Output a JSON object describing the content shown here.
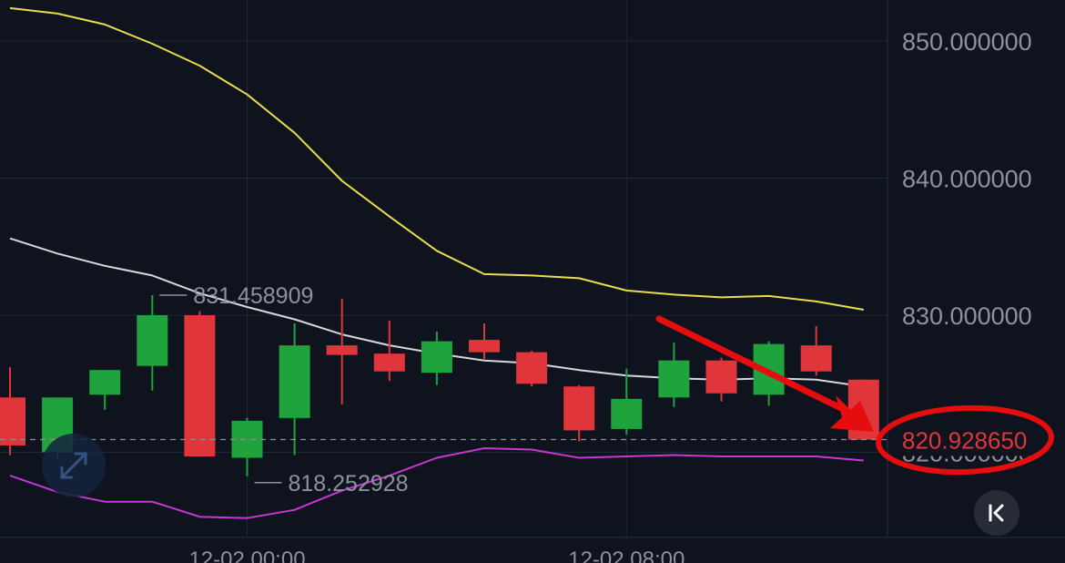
{
  "chart_data": {
    "type": "candlestick",
    "price_axis": {
      "ticks": [
        "850.000000",
        "840.000000",
        "830.000000",
        "820.000000"
      ],
      "tick_values": [
        850,
        840,
        830,
        820
      ],
      "range": [
        812.0,
        853.0
      ]
    },
    "time_axis": {
      "labels": [
        "12-02 00:00",
        "12-02 08:00"
      ],
      "label_candle_index": [
        5,
        13
      ]
    },
    "candles": [
      {
        "open": 824.0,
        "high": 826.2,
        "low": 819.8,
        "close": 820.5
      },
      {
        "open": 820.0,
        "high": 824.0,
        "low": 819.5,
        "close": 824.0
      },
      {
        "open": 824.2,
        "high": 826.0,
        "low": 823.1,
        "close": 826.0
      },
      {
        "open": 826.3,
        "high": 831.459,
        "low": 824.5,
        "close": 830.0
      },
      {
        "open": 830.0,
        "high": 830.3,
        "low": 819.7,
        "close": 819.7
      },
      {
        "open": 819.6,
        "high": 822.5,
        "low": 818.253,
        "close": 822.3
      },
      {
        "open": 822.5,
        "high": 829.4,
        "low": 819.8,
        "close": 827.8
      },
      {
        "open": 827.8,
        "high": 831.2,
        "low": 823.5,
        "close": 827.1
      },
      {
        "open": 827.2,
        "high": 829.6,
        "low": 825.2,
        "close": 825.9
      },
      {
        "open": 825.8,
        "high": 828.8,
        "low": 824.9,
        "close": 828.1
      },
      {
        "open": 828.2,
        "high": 829.4,
        "low": 826.8,
        "close": 827.3
      },
      {
        "open": 827.3,
        "high": 827.4,
        "low": 824.8,
        "close": 825.0
      },
      {
        "open": 824.8,
        "high": 824.9,
        "low": 820.8,
        "close": 821.6
      },
      {
        "open": 821.7,
        "high": 826.1,
        "low": 821.3,
        "close": 823.9
      },
      {
        "open": 824.0,
        "high": 828.0,
        "low": 823.3,
        "close": 826.7
      },
      {
        "open": 826.7,
        "high": 826.9,
        "low": 823.7,
        "close": 824.3
      },
      {
        "open": 824.2,
        "high": 828.1,
        "low": 823.4,
        "close": 827.9
      },
      {
        "open": 827.8,
        "high": 829.2,
        "low": 825.6,
        "close": 825.9
      },
      {
        "open": 825.3,
        "high": 825.3,
        "low": 820.9,
        "close": 820.93
      }
    ],
    "upper_band": [
      852.4,
      852.0,
      851.2,
      849.8,
      848.2,
      846.1,
      843.3,
      839.8,
      837.2,
      834.7,
      833.0,
      832.9,
      832.7,
      831.8,
      831.5,
      831.3,
      831.4,
      831.0,
      830.4
    ],
    "middle_band": [
      835.6,
      834.5,
      833.6,
      832.9,
      831.6,
      830.6,
      829.7,
      828.6,
      827.8,
      827.2,
      826.7,
      826.5,
      826.0,
      825.6,
      825.4,
      825.3,
      825.4,
      825.3,
      824.8
    ],
    "lower_band": [
      818.3,
      817.1,
      816.4,
      816.4,
      815.3,
      815.2,
      815.8,
      817.2,
      818.3,
      819.6,
      820.3,
      820.2,
      819.6,
      819.7,
      819.8,
      819.7,
      819.7,
      819.7,
      819.4
    ],
    "annotations": {
      "high_marker": {
        "label": "831.458909",
        "value": 831.458909,
        "candle_index": 3
      },
      "low_marker": {
        "label": "818.252928",
        "value": 818.252928,
        "candle_index": 5
      }
    },
    "current_price": {
      "label": "820.928650",
      "value": 820.92865
    },
    "colors": {
      "background": "#0e131d",
      "up": "#1fa33d",
      "down": "#e0353b",
      "upper_band": "#e8dc4d",
      "middle_band": "#d4d8de",
      "lower_band": "#c936d4",
      "grid": "#1e2734",
      "axis_text": "#8c929d",
      "highlight": "#e50d0d"
    }
  },
  "controls": {
    "fullscreen_icon": "expand-arrows-icon",
    "back_icon": "chevron-bar-left-icon"
  }
}
